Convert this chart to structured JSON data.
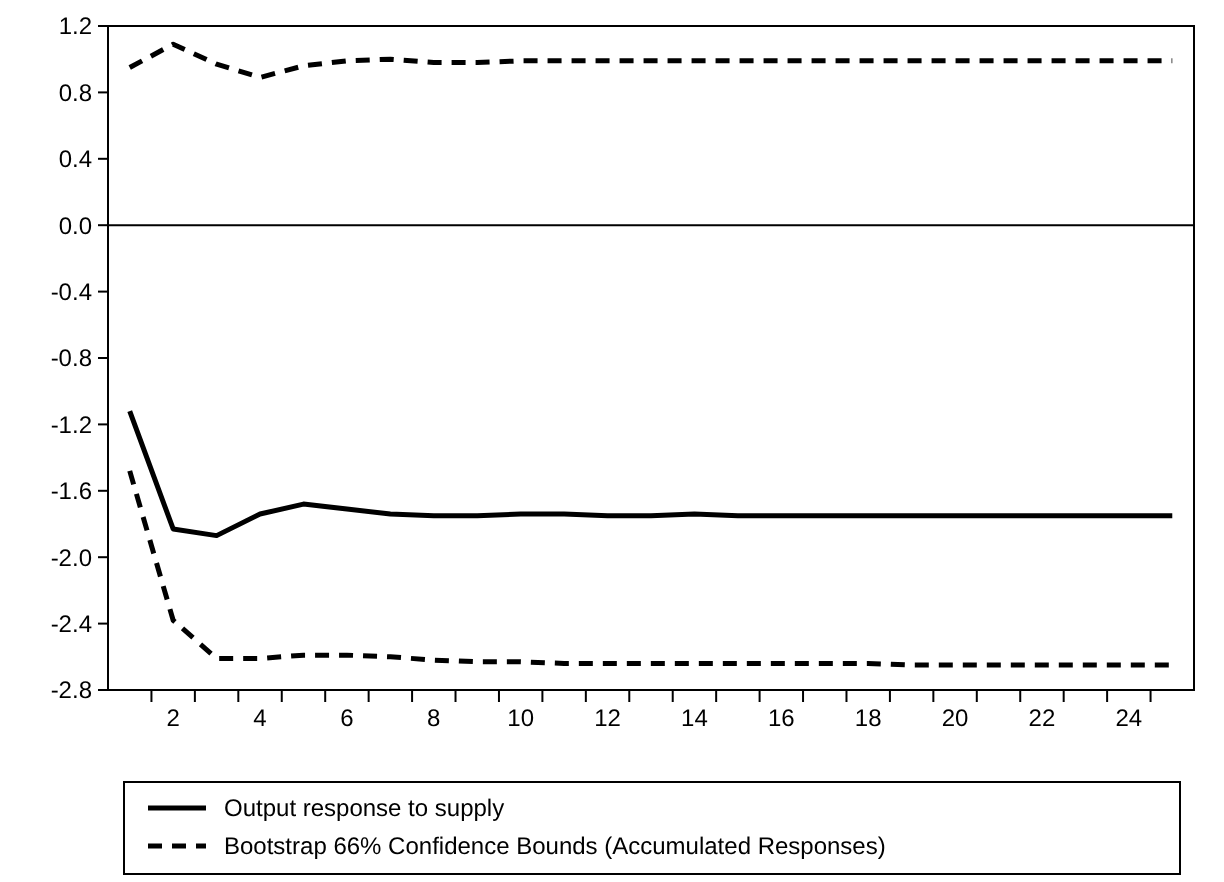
{
  "chart_data": {
    "type": "line",
    "x": [
      1,
      2,
      3,
      4,
      5,
      6,
      7,
      8,
      9,
      10,
      11,
      12,
      13,
      14,
      15,
      16,
      17,
      18,
      19,
      20,
      21,
      22,
      23,
      24,
      25
    ],
    "xlim": [
      0.5,
      25.5
    ],
    "xticks": [
      {
        "value": 1.5,
        "label": null
      },
      2,
      {
        "value": 2.5,
        "label": null
      },
      {
        "value": 3.5,
        "label": null
      },
      4,
      {
        "value": 4.5,
        "label": null
      },
      {
        "value": 5.5,
        "label": null
      },
      6,
      {
        "value": 6.5,
        "label": null
      },
      {
        "value": 7.5,
        "label": null
      },
      8,
      {
        "value": 8.5,
        "label": null
      },
      {
        "value": 9.5,
        "label": null
      },
      10,
      {
        "value": 10.5,
        "label": null
      },
      {
        "value": 11.5,
        "label": null
      },
      12,
      {
        "value": 12.5,
        "label": null
      },
      {
        "value": 13.5,
        "label": null
      },
      14,
      {
        "value": 14.5,
        "label": null
      },
      {
        "value": 15.5,
        "label": null
      },
      16,
      {
        "value": 16.5,
        "label": null
      },
      {
        "value": 17.5,
        "label": null
      },
      18,
      {
        "value": 18.5,
        "label": null
      },
      {
        "value": 19.5,
        "label": null
      },
      20,
      {
        "value": 20.5,
        "label": null
      },
      {
        "value": 21.5,
        "label": null
      },
      22,
      {
        "value": 22.5,
        "label": null
      },
      {
        "value": 23.5,
        "label": null
      },
      24,
      {
        "value": 24.5,
        "label": null
      }
    ],
    "ylim": [
      -2.8,
      1.2
    ],
    "yticks": [
      {
        "value": 1.2,
        "label": "1.2"
      },
      {
        "value": 0.8,
        "label": "0.8"
      },
      {
        "value": 0.4,
        "label": "0.4"
      },
      {
        "value": 0,
        "label": "0.0"
      },
      {
        "value": -0.4,
        "label": "-0.4"
      },
      {
        "value": -0.8,
        "label": "-0.8"
      },
      {
        "value": -1.2,
        "label": "-1.2"
      },
      {
        "value": -1.6,
        "label": "-1.6"
      },
      {
        "value": -2,
        "label": "-2.0"
      },
      {
        "value": -2.4,
        "label": "-2.4"
      },
      {
        "value": -2.8,
        "label": "-2.8"
      }
    ],
    "series": [
      {
        "name": "Output response to supply",
        "color": "#000000",
        "line_style": "solid",
        "values": [
          -1.12,
          -1.83,
          -1.87,
          -1.74,
          -1.68,
          -1.71,
          -1.74,
          -1.75,
          -1.75,
          -1.74,
          -1.74,
          -1.75,
          -1.75,
          -1.74,
          -1.75,
          -1.75,
          -1.75,
          -1.75,
          -1.75,
          -1.75,
          -1.75,
          -1.75,
          -1.75,
          -1.75,
          -1.75
        ]
      },
      {
        "name": "Bootstrap 66% Confidence Bounds (Accumulated Responses)",
        "color": "#000000",
        "line_style": "dashed",
        "values": [
          -1.48,
          -2.38,
          -2.61,
          -2.61,
          -2.59,
          -2.59,
          -2.6,
          -2.62,
          -2.63,
          -2.63,
          -2.64,
          -2.64,
          -2.64,
          -2.64,
          -2.64,
          -2.64,
          -2.64,
          -2.64,
          -2.65,
          -2.65,
          -2.65,
          -2.65,
          -2.65,
          -2.65,
          -2.65
        ]
      },
      {
        "color": "#000000",
        "line_style": "dashed",
        "values": [
          0.95,
          1.09,
          0.97,
          0.89,
          0.96,
          0.99,
          1.0,
          0.98,
          0.98,
          0.99,
          0.99,
          0.99,
          0.99,
          0.99,
          0.99,
          0.99,
          0.99,
          0.99,
          0.99,
          0.99,
          0.99,
          0.99,
          0.99,
          0.99,
          0.99
        ]
      }
    ],
    "ref_lines": [
      {
        "axis": "y",
        "value": 0,
        "color": "#000000",
        "line_style": "solid"
      }
    ],
    "grid": false,
    "legend": "bottom",
    "marker": "none"
  }
}
